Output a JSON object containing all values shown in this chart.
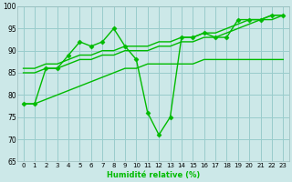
{
  "xlabel": "Humidité relative (%)",
  "background_color": "#cce8e8",
  "grid_color": "#99cccc",
  "line_color": "#00bb00",
  "ylim": [
    65,
    100
  ],
  "xlim": [
    -0.5,
    23.5
  ],
  "yticks": [
    65,
    70,
    75,
    80,
    85,
    90,
    95,
    100
  ],
  "xticks": [
    0,
    1,
    2,
    3,
    4,
    5,
    6,
    7,
    8,
    9,
    10,
    11,
    12,
    13,
    14,
    15,
    16,
    17,
    18,
    19,
    20,
    21,
    22,
    23
  ],
  "series": [
    {
      "x": [
        0,
        1,
        2,
        3,
        4,
        5,
        6,
        7,
        8,
        9,
        10,
        11,
        12,
        13,
        14,
        15,
        16,
        17,
        18,
        19,
        20,
        21,
        22,
        23
      ],
      "y": [
        78,
        78,
        86,
        86,
        89,
        92,
        91,
        92,
        95,
        91,
        88,
        76,
        71,
        75,
        93,
        93,
        94,
        93,
        93,
        97,
        97,
        97,
        98,
        98
      ],
      "marker": "D",
      "markersize": 2.5,
      "linewidth": 1.0
    },
    {
      "x": [
        0,
        1,
        2,
        3,
        4,
        5,
        6,
        7,
        8,
        9,
        10,
        11,
        12,
        13,
        14,
        15,
        16,
        17,
        18,
        19,
        20,
        21,
        22,
        23
      ],
      "y": [
        86,
        86,
        87,
        87,
        88,
        89,
        89,
        90,
        90,
        91,
        91,
        91,
        92,
        92,
        93,
        93,
        94,
        94,
        95,
        96,
        97,
        97,
        98,
        98
      ],
      "marker": null,
      "markersize": 0,
      "linewidth": 1.0
    },
    {
      "x": [
        0,
        1,
        2,
        3,
        4,
        5,
        6,
        7,
        8,
        9,
        10,
        11,
        12,
        13,
        14,
        15,
        16,
        17,
        18,
        19,
        20,
        21,
        22,
        23
      ],
      "y": [
        85,
        85,
        86,
        86,
        87,
        88,
        88,
        89,
        89,
        90,
        90,
        90,
        91,
        91,
        92,
        92,
        93,
        93,
        94,
        95,
        96,
        97,
        97,
        98
      ],
      "marker": null,
      "markersize": 0,
      "linewidth": 1.0
    },
    {
      "x": [
        0,
        1,
        2,
        3,
        4,
        5,
        6,
        7,
        8,
        9,
        10,
        11,
        12,
        13,
        14,
        15,
        16,
        17,
        18,
        19,
        20,
        21,
        22,
        23
      ],
      "y": [
        78,
        78,
        79,
        80,
        81,
        82,
        83,
        84,
        85,
        86,
        86,
        87,
        87,
        87,
        87,
        87,
        88,
        88,
        88,
        88,
        88,
        88,
        88,
        88
      ],
      "marker": null,
      "markersize": 0,
      "linewidth": 1.0
    }
  ]
}
